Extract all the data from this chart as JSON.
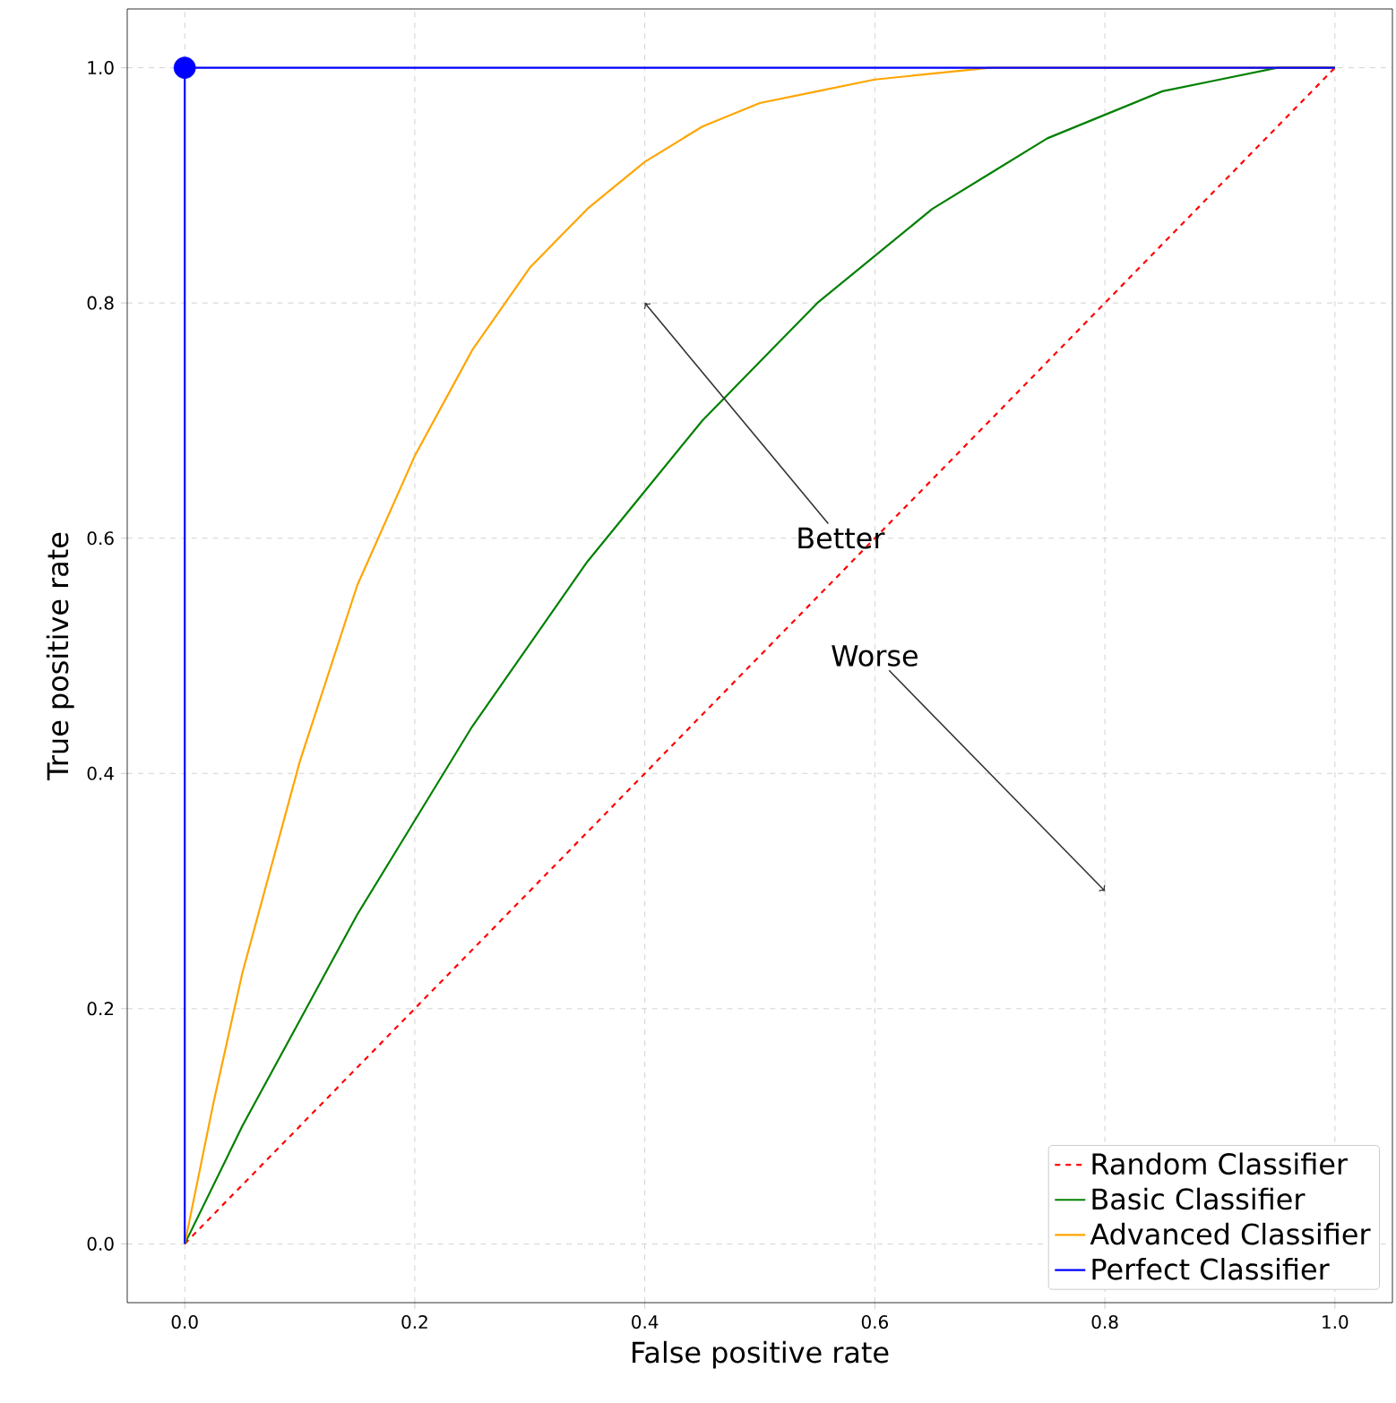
{
  "chart_data": {
    "type": "line",
    "xlabel": "False positive rate",
    "ylabel": "True positive rate",
    "xlim": [
      -0.05,
      1.05
    ],
    "ylim": [
      -0.05,
      1.05
    ],
    "xticks": [
      {
        "value": 0,
        "label": "0.0"
      },
      {
        "value": 0.2,
        "label": "0.2"
      },
      {
        "value": 0.4,
        "label": "0.4"
      },
      {
        "value": 0.6,
        "label": "0.6"
      },
      {
        "value": 0.8,
        "label": "0.8"
      },
      {
        "value": 1,
        "label": "1.0"
      }
    ],
    "yticks": [
      {
        "value": 0,
        "label": "0.0"
      },
      {
        "value": 0.2,
        "label": "0.2"
      },
      {
        "value": 0.4,
        "label": "0.4"
      },
      {
        "value": 0.6,
        "label": "0.6"
      },
      {
        "value": 0.8,
        "label": "0.8"
      },
      {
        "value": 1,
        "label": "1.0"
      }
    ],
    "grid": true,
    "legend": "bottom right",
    "series": [
      {
        "name": "Random Classifier",
        "color": "#ff0000",
        "line_style": "dashed",
        "x": [
          0,
          1
        ],
        "values": [
          0,
          1
        ]
      },
      {
        "name": "Basic Classifier",
        "color": "#008000",
        "x": [
          0,
          0.05,
          0.1,
          0.15,
          0.2,
          0.25,
          0.3,
          0.35,
          0.4,
          0.45,
          0.5,
          0.55,
          0.6,
          0.65,
          0.7,
          0.75,
          0.8,
          0.85,
          0.9,
          0.95,
          1
        ],
        "values": [
          0,
          0.1,
          0.19,
          0.28,
          0.36,
          0.44,
          0.51,
          0.58,
          0.64,
          0.7,
          0.75,
          0.8,
          0.84,
          0.88,
          0.91,
          0.94,
          0.96,
          0.98,
          0.99,
          1.0,
          1
        ]
      },
      {
        "name": "Advanced Classifier",
        "color": "#ffa500",
        "x": [
          0,
          0.025,
          0.05,
          0.1,
          0.15,
          0.2,
          0.25,
          0.3,
          0.35,
          0.4,
          0.45,
          0.5,
          0.55,
          0.6,
          0.65,
          0.7,
          1
        ],
        "values": [
          0,
          0.12,
          0.23,
          0.41,
          0.56,
          0.67,
          0.76,
          0.83,
          0.88,
          0.92,
          0.95,
          0.97,
          0.98,
          0.99,
          0.995,
          1.0,
          1
        ]
      },
      {
        "name": "Perfect Classifier",
        "color": "#0000ff",
        "x": [
          0,
          0,
          1
        ],
        "values": [
          0,
          1,
          1
        ]
      },
      {
        "type": "scatter",
        "color": "#0000ff",
        "marker": "circle",
        "x": [
          0
        ],
        "values": [
          1
        ]
      }
    ],
    "annotations": [
      {
        "text": "Better",
        "x": 0.4,
        "y": 0.8
      },
      {
        "text": "Worse",
        "x": 0.8,
        "y": 0.3
      }
    ]
  }
}
